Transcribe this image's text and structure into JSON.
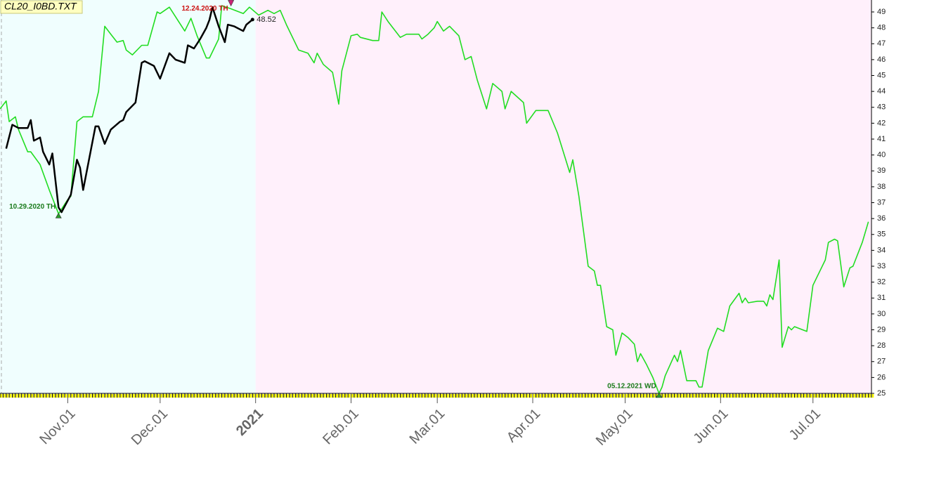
{
  "chart_data": {
    "type": "line",
    "title": "CL20_I0BD.TXT",
    "xlim": [
      "2020-10-10",
      "2021-07-20"
    ],
    "ylim": [
      25,
      49.5
    ],
    "yticks": [
      25,
      26,
      27,
      28,
      29,
      30,
      31,
      32,
      33,
      34,
      35,
      36,
      37,
      38,
      39,
      40,
      41,
      42,
      43,
      44,
      45,
      46,
      47,
      48,
      49
    ],
    "xticks": [
      {
        "value": "2020-11-01",
        "label": "Nov.01"
      },
      {
        "value": "2020-12-01",
        "label": "Dec.01"
      },
      {
        "value": "2021-01-01",
        "label": "2021",
        "highlight": true
      },
      {
        "value": "2021-02-01",
        "label": "Feb.01"
      },
      {
        "value": "2021-03-01",
        "label": "Mar.01"
      },
      {
        "value": "2021-04-01",
        "label": "Apr.01"
      },
      {
        "value": "2021-05-01",
        "label": "May.01"
      },
      {
        "value": "2021-06-01",
        "label": "Jun.01"
      },
      {
        "value": "2021-07-01",
        "label": "Jul.01"
      }
    ],
    "shade_split": "2021-01-01",
    "shade_colors": [
      "#f0fefe",
      "#fff0fb"
    ],
    "series": [
      {
        "color": "#22dd22",
        "x": [
          "2020-10-10",
          "2020-10-12",
          "2020-10-13",
          "2020-10-15",
          "2020-10-16",
          "2020-10-19",
          "2020-10-20",
          "2020-10-23",
          "2020-10-26",
          "2020-10-29",
          "2020-11-01",
          "2020-11-02",
          "2020-11-04",
          "2020-11-06",
          "2020-11-09",
          "2020-11-11",
          "2020-11-13",
          "2020-11-15",
          "2020-11-17",
          "2020-11-19",
          "2020-11-20",
          "2020-11-22",
          "2020-11-25",
          "2020-11-27",
          "2020-11-30",
          "2020-12-01",
          "2020-12-04",
          "2020-12-07",
          "2020-12-09",
          "2020-12-11",
          "2020-12-13",
          "2020-12-16",
          "2020-12-17",
          "2020-12-20",
          "2020-12-21",
          "2020-12-24",
          "2020-12-28",
          "2020-12-30",
          "2021-01-02",
          "2021-01-05",
          "2021-01-07",
          "2021-01-09",
          "2021-01-11",
          "2021-01-15",
          "2021-01-18",
          "2021-01-20",
          "2021-01-21",
          "2021-01-23",
          "2021-01-26",
          "2021-01-28",
          "2021-01-29",
          "2021-02-01",
          "2021-02-03",
          "2021-02-04",
          "2021-02-08",
          "2021-02-10",
          "2021-02-11",
          "2021-02-13",
          "2021-02-15",
          "2021-02-17",
          "2021-02-19",
          "2021-02-23",
          "2021-02-24",
          "2021-02-26",
          "2021-02-28",
          "2021-03-01",
          "2021-03-03",
          "2021-03-05",
          "2021-03-08",
          "2021-03-10",
          "2021-03-12",
          "2021-03-14",
          "2021-03-17",
          "2021-03-19",
          "2021-03-22",
          "2021-03-23",
          "2021-03-25",
          "2021-03-29",
          "2021-03-30",
          "2021-04-02",
          "2021-04-06",
          "2021-04-09",
          "2021-04-13",
          "2021-04-14",
          "2021-04-16",
          "2021-04-19",
          "2021-04-21",
          "2021-04-22",
          "2021-04-23",
          "2021-04-25",
          "2021-04-27",
          "2021-04-28",
          "2021-04-30",
          "2021-05-02",
          "2021-05-04",
          "2021-05-05",
          "2021-05-06",
          "2021-05-08",
          "2021-05-10",
          "2021-05-12",
          "2021-05-13",
          "2021-05-14",
          "2021-05-17",
          "2021-05-18",
          "2021-05-19",
          "2021-05-21",
          "2021-05-24",
          "2021-05-25",
          "2021-05-26",
          "2021-05-28",
          "2021-05-31",
          "2021-06-02",
          "2021-06-04",
          "2021-06-07",
          "2021-06-08",
          "2021-06-09",
          "2021-06-10",
          "2021-06-13",
          "2021-06-15",
          "2021-06-16",
          "2021-06-17",
          "2021-06-18",
          "2021-06-20",
          "2021-06-21",
          "2021-06-23",
          "2021-06-24",
          "2021-06-25",
          "2021-06-29",
          "2021-07-01",
          "2021-07-05",
          "2021-07-06",
          "2021-07-08",
          "2021-07-09",
          "2021-07-11",
          "2021-07-13",
          "2021-07-14",
          "2021-07-17",
          "2021-07-19"
        ],
        "values": [
          42.9,
          43.4,
          42.1,
          42.4,
          41.6,
          40.2,
          40.2,
          39.4,
          37.8,
          36.3,
          37.2,
          37.4,
          42.1,
          42.4,
          42.4,
          44.0,
          48.1,
          47.6,
          47.1,
          47.2,
          46.6,
          46.3,
          46.9,
          46.9,
          49.0,
          48.9,
          49.3,
          48.4,
          47.8,
          48.6,
          47.5,
          46.1,
          46.1,
          47.3,
          49.4,
          49.2,
          48.9,
          49.3,
          48.8,
          49.1,
          48.9,
          49.1,
          48.2,
          46.6,
          46.4,
          45.8,
          46.4,
          45.7,
          45.2,
          43.2,
          45.3,
          47.5,
          47.6,
          47.4,
          47.2,
          47.2,
          49.0,
          48.4,
          47.9,
          47.4,
          47.6,
          47.6,
          47.3,
          47.6,
          48.0,
          48.4,
          47.8,
          48.1,
          47.5,
          46.0,
          46.2,
          44.7,
          42.9,
          44.5,
          44.0,
          42.9,
          44.0,
          43.3,
          42.0,
          42.8,
          42.8,
          41.4,
          38.9,
          39.7,
          37.4,
          33.0,
          32.7,
          31.8,
          31.8,
          29.2,
          29.0,
          27.4,
          28.8,
          28.5,
          28.1,
          27.0,
          27.5,
          26.8,
          26.0,
          25.0,
          25.4,
          26.1,
          27.4,
          27.0,
          27.7,
          25.8,
          25.8,
          25.4,
          25.4,
          27.7,
          29.1,
          28.9,
          30.5,
          31.3,
          30.7,
          31.0,
          30.7,
          30.8,
          30.8,
          30.5,
          31.2,
          30.9,
          33.4,
          27.9,
          29.2,
          29.0,
          29.2,
          28.9,
          31.8,
          33.4,
          34.5,
          34.7,
          34.6,
          31.7,
          32.9,
          33.0,
          34.5,
          35.8
        ]
      },
      {
        "color": "#000000",
        "last_label": true,
        "x": [
          "2020-10-12",
          "2020-10-14",
          "2020-10-16",
          "2020-10-19",
          "2020-10-20",
          "2020-10-21",
          "2020-10-23",
          "2020-10-24",
          "2020-10-26",
          "2020-10-27",
          "2020-10-29",
          "2020-10-30",
          "2020-11-02",
          "2020-11-04",
          "2020-11-05",
          "2020-11-06",
          "2020-11-10",
          "2020-11-11",
          "2020-11-13",
          "2020-11-15",
          "2020-11-18",
          "2020-11-19",
          "2020-11-20",
          "2020-11-23",
          "2020-11-25",
          "2020-11-26",
          "2020-11-29",
          "2020-12-01",
          "2020-12-04",
          "2020-12-06",
          "2020-12-09",
          "2020-12-10",
          "2020-12-12",
          "2020-12-14",
          "2020-12-16",
          "2020-12-17",
          "2020-12-18",
          "2020-12-20",
          "2020-12-22",
          "2020-12-23",
          "2020-12-25",
          "2020-12-28",
          "2020-12-29",
          "2020-12-31"
        ],
        "values": [
          40.4,
          41.9,
          41.7,
          41.7,
          42.2,
          40.9,
          41.1,
          40.2,
          39.4,
          40.1,
          36.7,
          36.4,
          37.5,
          39.7,
          39.2,
          37.8,
          41.8,
          41.8,
          40.7,
          41.6,
          42.1,
          42.2,
          42.7,
          43.3,
          45.8,
          45.9,
          45.6,
          44.8,
          46.4,
          46.0,
          45.8,
          46.9,
          46.7,
          47.3,
          48.0,
          48.5,
          49.3,
          48.1,
          47.1,
          48.2,
          48.1,
          47.8,
          48.2,
          48.52
        ]
      }
    ],
    "annotations": [
      {
        "text": "10.29.2020 TH",
        "x": "2020-10-29",
        "y": 36.3,
        "color": "#1a7a1a",
        "side": "left",
        "marker": "up"
      },
      {
        "text": "12.24.2020 TH",
        "x": "2020-12-24",
        "y": 49.2,
        "color": "#cc1111",
        "side": "left",
        "marker": "down"
      },
      {
        "text": "05.12.2021 WD",
        "x": "2021-05-12",
        "y": 25.0,
        "color": "#1a7a1a",
        "side": "left",
        "marker": "up"
      }
    ]
  }
}
